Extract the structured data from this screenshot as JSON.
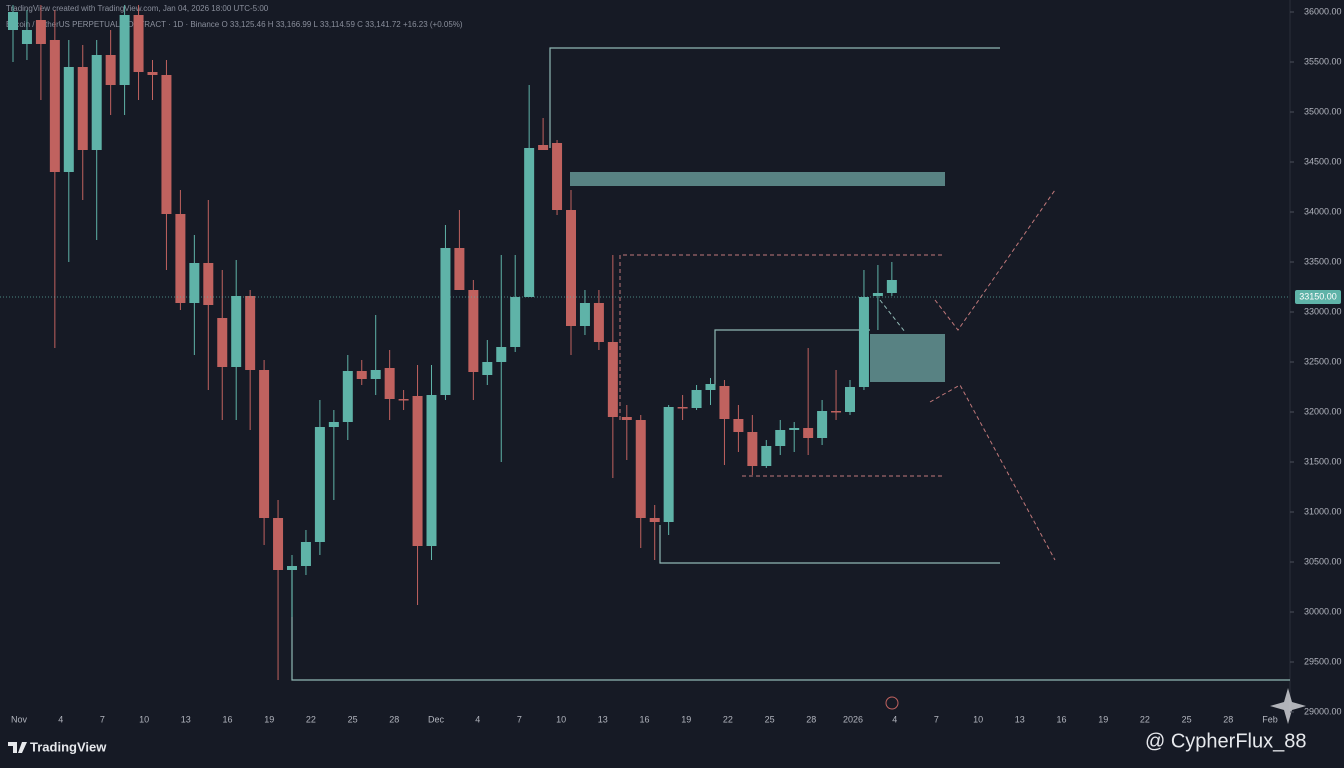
{
  "chart_data": {
    "type": "candlestick",
    "header": "TradingView created with TradingView.com, Jan 04, 2026 18:00 UTC-5:00",
    "symbol_line": "Bitcoin / TetherUS PERPETUAL CONTRACT · 1D · Binance  O 33,125.46  H 33,166.99  L 33,114.59  C 33,141.72  +16.23 (+0.05%)",
    "up_color": "#5fb3a8",
    "down_color": "#c0625f",
    "ylim": [
      28960,
      36120
    ],
    "yticks": [
      {
        "value": 36000,
        "label": "36000.00"
      },
      {
        "value": 35500,
        "label": "35500.00"
      },
      {
        "value": 35000,
        "label": "35000.00"
      },
      {
        "value": 34500,
        "label": "34500.00"
      },
      {
        "value": 34000,
        "label": "34000.00"
      },
      {
        "value": 33500,
        "label": "33500.00"
      },
      {
        "value": 33000,
        "label": "33000.00"
      },
      {
        "value": 32500,
        "label": "32500.00"
      },
      {
        "value": 32000,
        "label": "32000.00"
      },
      {
        "value": 31500,
        "label": "31500.00"
      },
      {
        "value": 31000,
        "label": "31000.00"
      },
      {
        "value": 30500,
        "label": "30500.00"
      },
      {
        "value": 30000,
        "label": "30000.00"
      },
      {
        "value": 29500,
        "label": "29500.00"
      },
      {
        "value": 29000,
        "label": "29000.00"
      }
    ],
    "last_price": {
      "value": 33150,
      "label": "33150.00"
    },
    "x_axis_labels": [
      "Nov",
      "4",
      "7",
      "10",
      "13",
      "16",
      "19",
      "22",
      "25",
      "28",
      "Dec",
      "4",
      "7",
      "10",
      "13",
      "16",
      "19",
      "22",
      "25",
      "28",
      "2026",
      "4",
      "7",
      "10",
      "13",
      "16",
      "19",
      "22",
      "25",
      "28",
      "Feb"
    ],
    "ohlc": [
      [
        35820,
        36070,
        35500,
        36000
      ],
      [
        35680,
        36020,
        35520,
        35820
      ],
      [
        35920,
        36070,
        35120,
        35680
      ],
      [
        35720,
        36020,
        32640,
        34400
      ],
      [
        34400,
        35720,
        33500,
        35450
      ],
      [
        35450,
        35670,
        34120,
        34620
      ],
      [
        34620,
        35720,
        33720,
        35570
      ],
      [
        35570,
        35820,
        34970,
        35270
      ],
      [
        35270,
        36070,
        34970,
        35970
      ],
      [
        35970,
        36070,
        35120,
        35400
      ],
      [
        35400,
        35520,
        35120,
        35370
      ],
      [
        35370,
        35520,
        33420,
        33980
      ],
      [
        33980,
        34220,
        33020,
        33090
      ],
      [
        33090,
        33770,
        32570,
        33490
      ],
      [
        33490,
        34120,
        32220,
        33070
      ],
      [
        32940,
        33420,
        31920,
        32450
      ],
      [
        32450,
        33520,
        31920,
        33160
      ],
      [
        33160,
        33220,
        31820,
        32420
      ],
      [
        32420,
        32520,
        30670,
        30940
      ],
      [
        30940,
        31120,
        29320,
        30420
      ],
      [
        30420,
        30570,
        29950,
        30460
      ],
      [
        30460,
        30820,
        30370,
        30700
      ],
      [
        30700,
        32120,
        30570,
        31850
      ],
      [
        31850,
        32020,
        31120,
        31900
      ],
      [
        31900,
        32570,
        31720,
        32410
      ],
      [
        32410,
        32520,
        32270,
        32330
      ],
      [
        32330,
        32970,
        32170,
        32420
      ],
      [
        32440,
        32620,
        31920,
        32130
      ],
      [
        32130,
        32220,
        32020,
        32120
      ],
      [
        32160,
        32470,
        30070,
        30660
      ],
      [
        30660,
        32470,
        30520,
        32170
      ],
      [
        32170,
        33870,
        32120,
        33640
      ],
      [
        33640,
        34020,
        33220,
        33220
      ],
      [
        33220,
        33320,
        32120,
        32400
      ],
      [
        32370,
        32720,
        32270,
        32500
      ],
      [
        32500,
        33570,
        31500,
        32650
      ],
      [
        32650,
        33570,
        32600,
        33150
      ],
      [
        33150,
        35270,
        33150,
        34640
      ],
      [
        34670,
        34940,
        34620,
        34620
      ],
      [
        34690,
        34720,
        33970,
        34020
      ],
      [
        34020,
        34220,
        32570,
        32860
      ],
      [
        32860,
        33220,
        32770,
        33090
      ],
      [
        33090,
        33220,
        32620,
        32700
      ],
      [
        32700,
        33570,
        31340,
        31950
      ],
      [
        31950,
        32070,
        31520,
        31920
      ],
      [
        31920,
        31970,
        30640,
        30940
      ],
      [
        30940,
        31070,
        30520,
        30900
      ],
      [
        30900,
        32070,
        30770,
        32050
      ],
      [
        32050,
        32170,
        31920,
        32040
      ],
      [
        32040,
        32270,
        32020,
        32220
      ],
      [
        32220,
        32340,
        32070,
        32280
      ],
      [
        32260,
        32320,
        31470,
        31930
      ],
      [
        31930,
        32070,
        31600,
        31800
      ],
      [
        31800,
        31970,
        31370,
        31460
      ],
      [
        31460,
        31720,
        31440,
        31660
      ],
      [
        31660,
        31920,
        31570,
        31820
      ],
      [
        31820,
        31900,
        31600,
        31840
      ],
      [
        31840,
        32640,
        31570,
        31740
      ],
      [
        31740,
        32120,
        31670,
        32010
      ],
      [
        32010,
        32420,
        31920,
        32000
      ],
      [
        32000,
        32320,
        31970,
        32250
      ],
      [
        32250,
        33420,
        32220,
        33150
      ],
      [
        33160,
        33470,
        32820,
        33190
      ],
      [
        33190,
        33500,
        33160,
        33320
      ]
    ],
    "footer_brand": "TradingView",
    "watermark": "@ CypherFlux_88"
  }
}
